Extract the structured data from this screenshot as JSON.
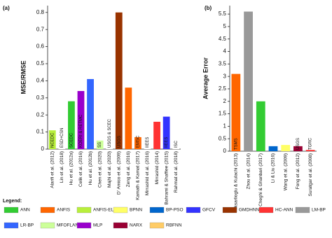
{
  "chart_data": [
    {
      "type": "bar",
      "panel": "(a)",
      "ylabel": "MSE/RMSE",
      "categories": [
        "Alarifi et al. (2012)",
        "Lin et al. (2018)",
        "Hu et al. (2012a)",
        "Celik et al. (2016)",
        "Hu et al. (2012b)",
        "Chen et al. (2020)",
        "Majhi et al. (2020)",
        "D' Amico et al. (2009)",
        "Zeng et al. (2016)",
        "Kamath & Kamat (2017)",
        "Mirrashid et al. (2016)",
        "Mirrashid (2014)",
        "Bahrami & Shaffiee (2015)",
        "Rahmat et al. (2018)"
      ],
      "values": [
        0.11,
        0.12,
        0.28,
        0.34,
        0.41,
        0.05,
        0.03,
        0.8,
        0.36,
        0.07,
        0.04,
        0.16,
        0.19,
        0.02
      ],
      "bar_labels": [
        "NCEDC",
        "ESD+CSN",
        "SCEDC",
        "KOERI & RETMC",
        null,
        "SS",
        "USGS & SCEC",
        "USGS",
        null,
        "EMSC",
        "IIEES",
        null,
        "IIEES",
        "ISC"
      ],
      "colors": [
        "#b8ef3c",
        "#ffffff",
        "#33cc33",
        "#9900cc",
        "#3366ff",
        "#ccff99",
        "#ffffff",
        "#993300",
        "#ff6600",
        "#ff6600",
        "#ffffff",
        "#ff3333",
        "#3333ff",
        "#ffffff"
      ],
      "ylim": [
        0,
        0.84
      ],
      "yticks": [
        0,
        0.1,
        0.2,
        0.3,
        0.4,
        0.5,
        0.6,
        0.7,
        0.8
      ]
    },
    {
      "type": "bar",
      "panel": "(b)",
      "ylabel": "Average Error",
      "categories": [
        "Niksarlioglu & Kulachi (2013)",
        "Zhou et al. (2014)",
        "Cheghi & Ghanbari (2017)",
        "Li & Liu (2016)",
        "Wang et al. (2009)",
        "Fong et al. (2012)",
        "Suratgar et al. (2008)"
      ],
      "values": [
        3.1,
        5.6,
        2.0,
        0.2,
        0.25,
        0.2,
        0.05
      ],
      "bar_labels": [
        "TSMS",
        null,
        null,
        null,
        null,
        "USGS",
        "TGRC"
      ],
      "colors": [
        "#ff6600",
        "#999999",
        "#33cc33",
        "#0066cc",
        "#ffff66",
        "#990033",
        "#ff3333"
      ],
      "ylim": [
        0,
        5.84
      ],
      "yticks": [
        0,
        0.5,
        1,
        1.5,
        2,
        2.5,
        3,
        3.5,
        4,
        4.5,
        5,
        5.5
      ]
    }
  ],
  "legend": {
    "title": "Legend:",
    "items": [
      {
        "name": "ANN",
        "color": "#33cc33"
      },
      {
        "name": "ANFIS",
        "color": "#ff6600"
      },
      {
        "name": "ANFIS-ELM",
        "color": "#b8ef3c"
      },
      {
        "name": "BPNN",
        "color": "#ffff66"
      },
      {
        "name": "BP-PSO",
        "color": "#0066cc"
      },
      {
        "name": "GFCV",
        "color": "#3333ff"
      },
      {
        "name": "GMDHNN",
        "color": "#993300"
      },
      {
        "name": "HC-ANN",
        "color": "#ff3333"
      },
      {
        "name": "LM-BP",
        "color": "#999999"
      },
      {
        "name": "LR-BP",
        "color": "#3366ff"
      },
      {
        "name": "MFOFLANN",
        "color": "#ccff99"
      },
      {
        "name": "MLP",
        "color": "#9900cc"
      },
      {
        "name": "NARX",
        "color": "#990033"
      },
      {
        "name": "RBFNN",
        "color": "#ffcc66"
      }
    ]
  }
}
